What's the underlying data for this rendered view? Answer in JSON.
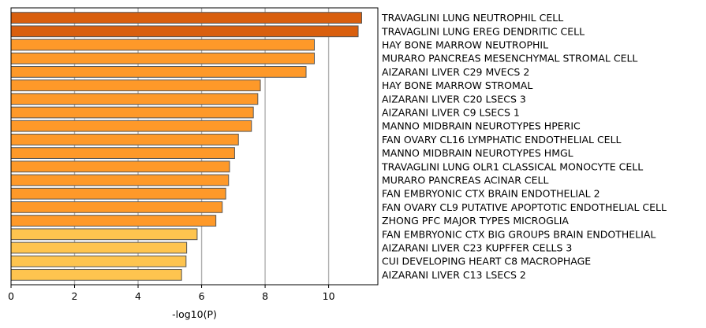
{
  "chart_data": {
    "type": "bar",
    "orientation": "horizontal",
    "xlabel": "-log10(P)",
    "xlim": [
      0,
      11.55
    ],
    "xticks": [
      0,
      2,
      4,
      6,
      8,
      10
    ],
    "grid": "vertical",
    "categories": [
      "TRAVAGLINI LUNG NEUTROPHIL CELL",
      "TRAVAGLINI LUNG EREG DENDRITIC CELL",
      "HAY BONE MARROW NEUTROPHIL",
      "MURARO PANCREAS MESENCHYMAL STROMAL CELL",
      "AIZARANI LIVER C29 MVECS 2",
      "HAY BONE MARROW STROMAL",
      "AIZARANI LIVER C20 LSECS 3",
      "AIZARANI LIVER C9 LSECS 1",
      "MANNO MIDBRAIN NEUROTYPES HPERIC",
      "FAN OVARY CL16 LYMPHATIC ENDOTHELIAL CELL",
      "MANNO MIDBRAIN NEUROTYPES HMGL",
      "TRAVAGLINI LUNG OLR1 CLASSICAL MONOCYTE CELL",
      "MURARO PANCREAS ACINAR CELL",
      "FAN EMBRYONIC CTX BRAIN ENDOTHELIAL 2",
      "FAN OVARY CL9 PUTATIVE APOPTOTIC ENDOTHELIAL CELL",
      "ZHONG PFC MAJOR TYPES MICROGLIA",
      "FAN EMBRYONIC CTX BIG GROUPS BRAIN ENDOTHELIAL",
      "AIZARANI LIVER C23 KUPFFER CELLS 3",
      "CUI DEVELOPING HEART C8 MACROPHAGE",
      "AIZARANI LIVER C13 LSECS 2"
    ],
    "values": [
      11.04,
      10.93,
      9.55,
      9.55,
      9.29,
      7.85,
      7.77,
      7.63,
      7.57,
      7.16,
      7.04,
      6.88,
      6.85,
      6.76,
      6.65,
      6.45,
      5.86,
      5.53,
      5.51,
      5.37
    ],
    "bar_colors": [
      "#d95f0e",
      "#d95f0e",
      "#fe9929",
      "#fe9929",
      "#fe9929",
      "#fe9929",
      "#fe9929",
      "#fe9929",
      "#fe9929",
      "#fe9929",
      "#fe9929",
      "#fe9929",
      "#fe9929",
      "#fe9929",
      "#fe9929",
      "#fe9929",
      "#fec44f",
      "#fec44f",
      "#fec44f",
      "#fec44f"
    ],
    "bar_edge_color": "#555555",
    "grid_color": "#b0b0b0"
  }
}
